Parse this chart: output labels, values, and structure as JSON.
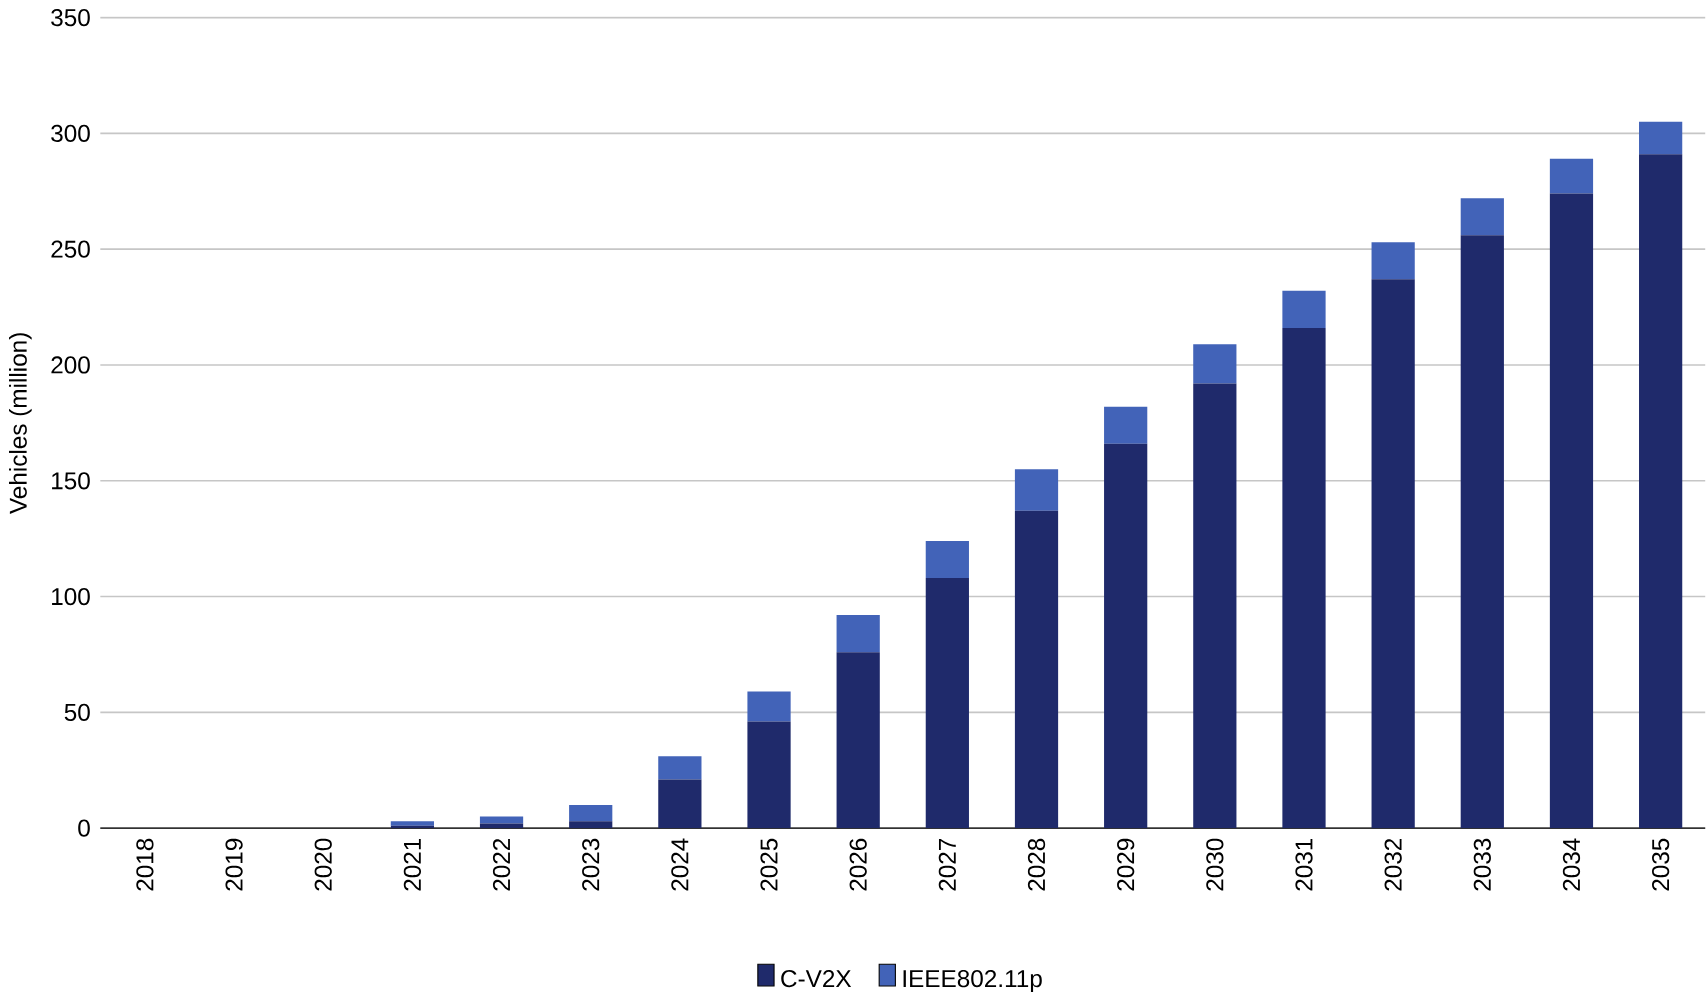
{
  "chart_data": {
    "type": "bar",
    "stacked": true,
    "ylabel": "Vehicles (million)",
    "categories": [
      "2018",
      "2019",
      "2020",
      "2021",
      "2022",
      "2023",
      "2024",
      "2025",
      "2026",
      "2027",
      "2028",
      "2029",
      "2030",
      "2031",
      "2032",
      "2033",
      "2034",
      "2035"
    ],
    "series": [
      {
        "name": "C-V2X",
        "color": "#1f2a6b",
        "values": [
          0,
          0,
          0,
          1,
          2,
          3,
          21,
          46,
          76,
          108,
          137,
          166,
          192,
          216,
          237,
          256,
          274,
          291
        ]
      },
      {
        "name": "IEEE802.11p",
        "color": "#4263b8",
        "values": [
          0,
          0,
          0,
          2,
          3,
          7,
          10,
          13,
          16,
          16,
          18,
          16,
          17,
          16,
          16,
          16,
          15,
          14
        ]
      }
    ],
    "ylim": [
      0,
      350
    ],
    "yticks": [
      0,
      50,
      100,
      150,
      200,
      250,
      300,
      350
    ],
    "grid": "y",
    "legend": "bottom"
  }
}
